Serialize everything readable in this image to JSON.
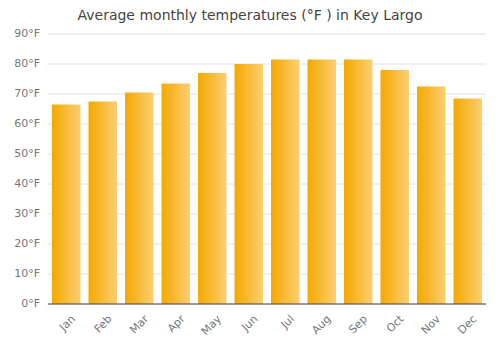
{
  "chart_data": {
    "type": "bar",
    "title": "Average monthly temperatures (°F ) in Key Largo",
    "categories": [
      "Jan",
      "Feb",
      "Mar",
      "Apr",
      "May",
      "Jun",
      "Jul",
      "Aug",
      "Sep",
      "Oct",
      "Nov",
      "Dec"
    ],
    "values": [
      66.5,
      67.5,
      70.5,
      73.5,
      77,
      80,
      81.5,
      81.5,
      81.5,
      78,
      72.5,
      68.5
    ],
    "color": "#F5A800",
    "ylim": [
      0,
      90
    ],
    "yticks": [
      {
        "value": 0,
        "label": "0°F"
      },
      {
        "value": 10,
        "label": "10°F"
      },
      {
        "value": 20,
        "label": "20°F"
      },
      {
        "value": 30,
        "label": "30°F"
      },
      {
        "value": 40,
        "label": "40°F"
      },
      {
        "value": 50,
        "label": "50°F"
      },
      {
        "value": 60,
        "label": "60°F"
      },
      {
        "value": 70,
        "label": "70°F"
      },
      {
        "value": 80,
        "label": "80°F"
      },
      {
        "value": 90,
        "label": "90°F"
      }
    ],
    "grid": true
  }
}
